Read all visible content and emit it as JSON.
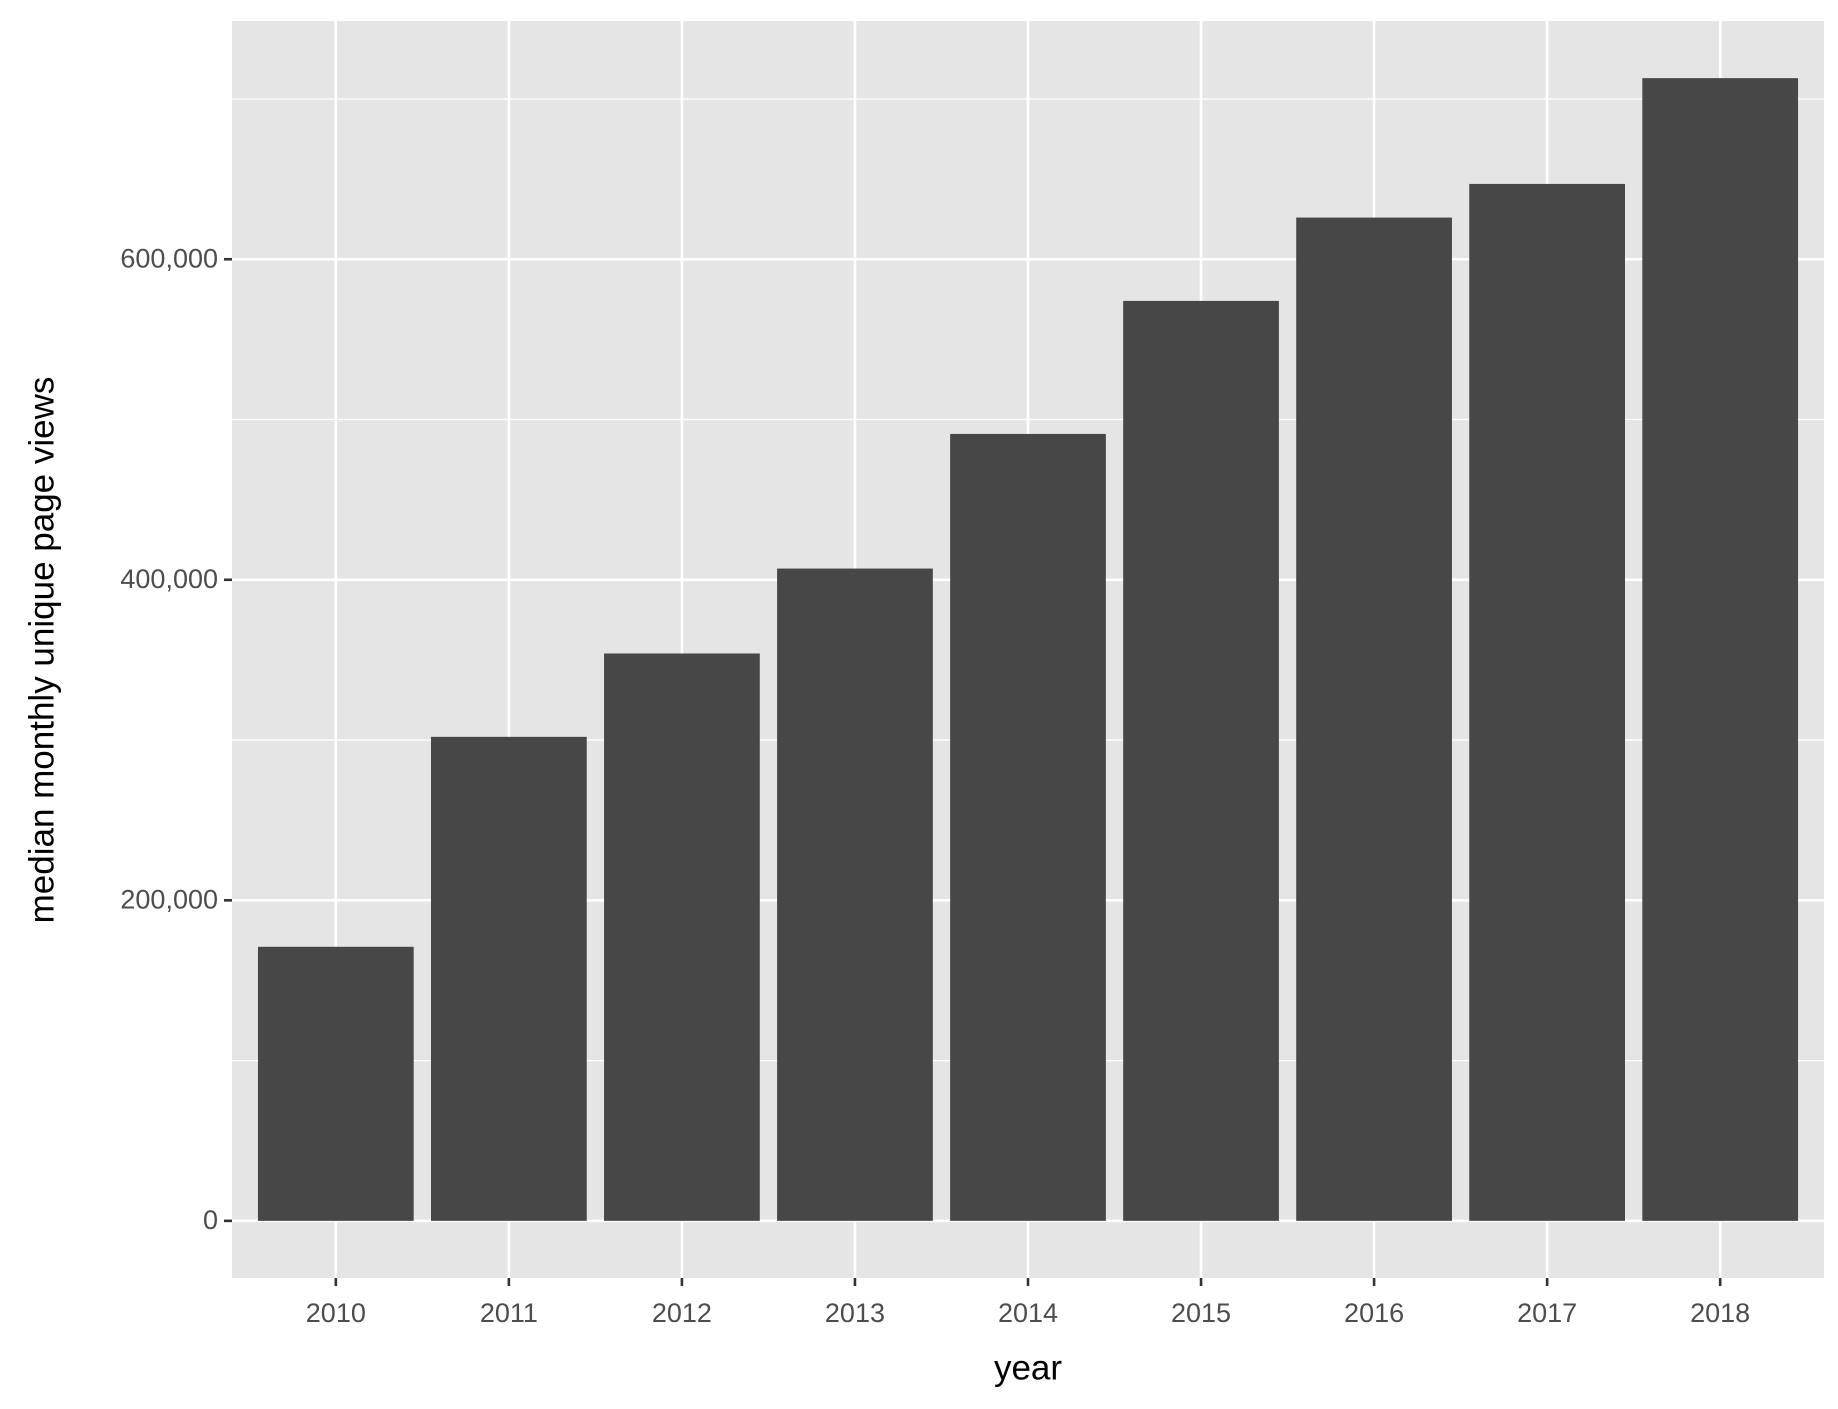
{
  "chart_data": {
    "type": "bar",
    "x_label": "year",
    "y_label": "median monthly unique page views",
    "categories": [
      "2010",
      "2011",
      "2012",
      "2013",
      "2014",
      "2015",
      "2016",
      "2017",
      "2018"
    ],
    "values": [
      171000,
      302000,
      354000,
      407000,
      491000,
      574000,
      626000,
      647000,
      713000
    ],
    "color": "#474747",
    "ylim": [
      -35650,
      748650
    ],
    "yticks": [
      0,
      {
        "value": 200000,
        "label": "200,000"
      },
      {
        "value": 400000,
        "label": "400,000"
      },
      {
        "value": 600000,
        "label": "600,000"
      }
    ],
    "grid": true
  }
}
